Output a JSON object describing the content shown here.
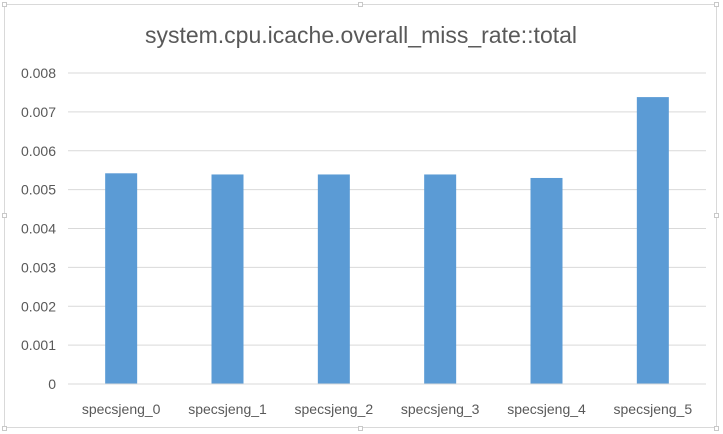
{
  "chart_data": {
    "type": "bar",
    "title": "system.cpu.icache.overall_miss_rate::total",
    "xlabel": "",
    "ylabel": "",
    "categories": [
      "specsjeng_0",
      "specsjeng_1",
      "specsjeng_2",
      "specsjeng_3",
      "specsjeng_4",
      "specsjeng_5"
    ],
    "values": [
      0.00542,
      0.00539,
      0.00539,
      0.00539,
      0.0053,
      0.00738
    ],
    "ylim": [
      0,
      0.008
    ],
    "yticks": [
      "0",
      "0.001",
      "0.002",
      "0.003",
      "0.004",
      "0.005",
      "0.006",
      "0.007",
      "0.008"
    ],
    "grid": "horizontal",
    "legend": "none",
    "bar_color": "#5b9bd5",
    "grid_color": "#d9d9d9"
  }
}
